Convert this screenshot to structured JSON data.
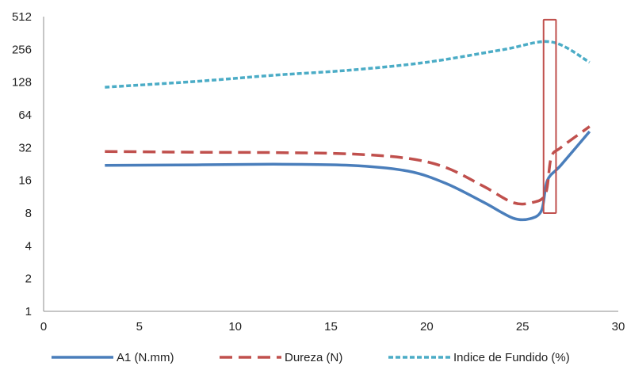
{
  "chart_data": {
    "type": "line",
    "title": "",
    "xlabel": "",
    "ylabel": "",
    "xlim": [
      0,
      30
    ],
    "ylim": [
      1,
      512
    ],
    "y_scale": "log2",
    "x_ticks": [
      "0",
      "5",
      "10",
      "15",
      "20",
      "25",
      "30"
    ],
    "y_ticks": [
      "1",
      "2",
      "4",
      "8",
      "16",
      "32",
      "64",
      "128",
      "256",
      "512"
    ],
    "grid": false,
    "legend_position": "bottom",
    "series": [
      {
        "name": "A1 (N.mm)",
        "color": "#4a7ebb",
        "style": "solid",
        "points": [
          [
            3.2,
            22
          ],
          [
            8,
            22.2
          ],
          [
            12,
            22.5
          ],
          [
            16,
            22
          ],
          [
            19,
            19.5
          ],
          [
            21,
            15
          ],
          [
            23,
            10
          ],
          [
            24.5,
            7.2
          ],
          [
            25.4,
            7.1
          ],
          [
            26,
            8.5
          ],
          [
            26.3,
            16
          ],
          [
            27,
            22
          ],
          [
            28.5,
            45
          ]
        ]
      },
      {
        "name": "Dureza (N)",
        "color": "#c0504d",
        "style": "dashed",
        "points": [
          [
            3.2,
            29.5
          ],
          [
            8,
            29
          ],
          [
            12,
            28.8
          ],
          [
            16,
            28
          ],
          [
            19,
            25.5
          ],
          [
            21,
            21
          ],
          [
            23,
            14
          ],
          [
            24.5,
            10
          ],
          [
            25.5,
            10
          ],
          [
            26.2,
            12
          ],
          [
            26.5,
            26
          ],
          [
            27,
            32
          ],
          [
            28.5,
            50
          ]
        ]
      },
      {
        "name": "Indice de Fundido (%)",
        "color": "#4bacc6",
        "style": "dotted",
        "points": [
          [
            3.2,
            115
          ],
          [
            8,
            130
          ],
          [
            12,
            148
          ],
          [
            16,
            165
          ],
          [
            20,
            195
          ],
          [
            24,
            255
          ],
          [
            26.5,
            300
          ],
          [
            28.5,
            195
          ]
        ]
      }
    ],
    "annotations": [
      {
        "type": "rectangle",
        "x_range": [
          26.1,
          26.75
        ],
        "y_range": [
          8,
          480
        ],
        "color": "#c0504d"
      }
    ]
  }
}
